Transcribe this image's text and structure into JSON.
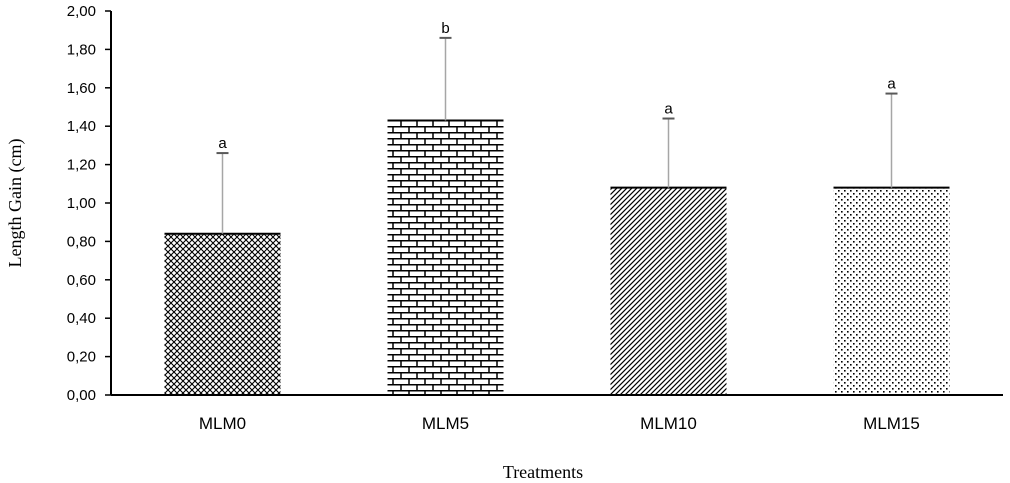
{
  "chart_data": {
    "type": "bar",
    "title": "",
    "xlabel": "Treatments",
    "ylabel": "Length Gain (cm)",
    "ylim": [
      0,
      2
    ],
    "yticks": [
      0,
      0.2,
      0.4,
      0.6,
      0.8,
      1.0,
      1.2,
      1.4,
      1.6,
      1.8,
      2.0
    ],
    "ytick_labels": [
      "0,00",
      "0,20",
      "0,40",
      "0,60",
      "0,80",
      "1,00",
      "1,20",
      "1,40",
      "1,60",
      "1,80",
      "2,00"
    ],
    "categories": [
      "MLM0",
      "MLM5",
      "MLM10",
      "MLM15"
    ],
    "values": [
      0.84,
      1.43,
      1.08,
      1.08
    ],
    "error_upper": [
      1.26,
      1.86,
      1.44,
      1.57
    ],
    "significance_labels": [
      "a",
      "b",
      "a",
      "a"
    ],
    "patterns": [
      "crosshatch",
      "brick",
      "diagonal",
      "dots"
    ],
    "grid": false,
    "legend": "none",
    "colors": {
      "bar_fill": "#000000",
      "bar_background": "#ffffff",
      "error_bar": "#a6a6a6",
      "error_cap": "#595959",
      "axis": "#000000"
    }
  }
}
